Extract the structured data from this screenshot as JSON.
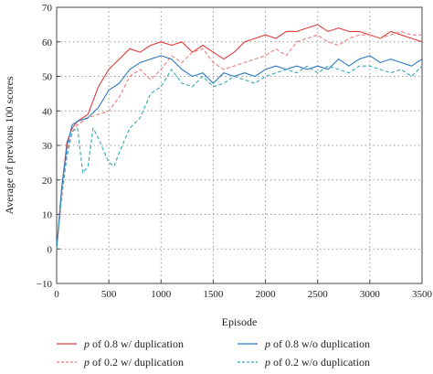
{
  "chart_data": {
    "type": "line",
    "xlabel": "Episode",
    "ylabel": "Average of previous 100 scores",
    "xlim": [
      0,
      3500
    ],
    "ylim": [
      -10,
      70
    ],
    "xticks": [
      0,
      500,
      1000,
      1500,
      2000,
      2500,
      3000,
      3500
    ],
    "yticks": [
      -10,
      0,
      10,
      20,
      30,
      40,
      50,
      60,
      70
    ],
    "grid": "dotted",
    "legend_position": "bottom",
    "series": [
      {
        "name_symbol": "p",
        "name_rest": " of 0.8 w/ duplication",
        "color": "#e03c3c",
        "dash": "solid",
        "points": [
          [
            0,
            0
          ],
          [
            50,
            18
          ],
          [
            100,
            31
          ],
          [
            150,
            35
          ],
          [
            200,
            37
          ],
          [
            300,
            39
          ],
          [
            400,
            47
          ],
          [
            500,
            52
          ],
          [
            600,
            55
          ],
          [
            700,
            58
          ],
          [
            800,
            57
          ],
          [
            900,
            59
          ],
          [
            1000,
            60
          ],
          [
            1100,
            59
          ],
          [
            1200,
            60
          ],
          [
            1300,
            57
          ],
          [
            1400,
            59
          ],
          [
            1500,
            57
          ],
          [
            1600,
            55
          ],
          [
            1700,
            57
          ],
          [
            1800,
            60
          ],
          [
            1900,
            61
          ],
          [
            2000,
            62
          ],
          [
            2100,
            61
          ],
          [
            2200,
            63
          ],
          [
            2300,
            63
          ],
          [
            2400,
            64
          ],
          [
            2500,
            65
          ],
          [
            2600,
            63
          ],
          [
            2700,
            64
          ],
          [
            2800,
            63
          ],
          [
            2900,
            63
          ],
          [
            3000,
            62
          ],
          [
            3100,
            61
          ],
          [
            3200,
            63
          ],
          [
            3300,
            62
          ],
          [
            3400,
            61
          ],
          [
            3500,
            60
          ]
        ]
      },
      {
        "name_symbol": "p",
        "name_rest": " of 0.2 w/ duplication",
        "color": "#f07c7c",
        "dash": "dashed",
        "points": [
          [
            0,
            0
          ],
          [
            50,
            15
          ],
          [
            100,
            29
          ],
          [
            150,
            34
          ],
          [
            200,
            36
          ],
          [
            300,
            38
          ],
          [
            400,
            39
          ],
          [
            500,
            40
          ],
          [
            600,
            44
          ],
          [
            700,
            50
          ],
          [
            800,
            52
          ],
          [
            900,
            49
          ],
          [
            1000,
            52
          ],
          [
            1100,
            56
          ],
          [
            1200,
            54
          ],
          [
            1300,
            57
          ],
          [
            1400,
            58
          ],
          [
            1500,
            54
          ],
          [
            1600,
            52
          ],
          [
            1700,
            53
          ],
          [
            1800,
            54
          ],
          [
            1900,
            55
          ],
          [
            2000,
            56
          ],
          [
            2100,
            58
          ],
          [
            2200,
            56
          ],
          [
            2300,
            60
          ],
          [
            2400,
            61
          ],
          [
            2500,
            62
          ],
          [
            2600,
            60
          ],
          [
            2700,
            59
          ],
          [
            2800,
            61
          ],
          [
            2900,
            62
          ],
          [
            3000,
            62
          ],
          [
            3100,
            61
          ],
          [
            3200,
            62
          ],
          [
            3300,
            63
          ],
          [
            3400,
            62
          ],
          [
            3500,
            62
          ]
        ]
      },
      {
        "name_symbol": "p",
        "name_rest": " of 0.8 w/o duplication",
        "color": "#2a78c0",
        "dash": "solid",
        "points": [
          [
            0,
            0
          ],
          [
            50,
            18
          ],
          [
            100,
            30
          ],
          [
            150,
            36
          ],
          [
            200,
            37
          ],
          [
            300,
            38
          ],
          [
            400,
            41
          ],
          [
            500,
            46
          ],
          [
            600,
            48
          ],
          [
            700,
            52
          ],
          [
            800,
            54
          ],
          [
            900,
            55
          ],
          [
            1000,
            56
          ],
          [
            1100,
            55
          ],
          [
            1200,
            52
          ],
          [
            1300,
            50
          ],
          [
            1400,
            51
          ],
          [
            1500,
            48
          ],
          [
            1600,
            51
          ],
          [
            1700,
            50
          ],
          [
            1800,
            51
          ],
          [
            1900,
            50
          ],
          [
            2000,
            52
          ],
          [
            2100,
            53
          ],
          [
            2200,
            52
          ],
          [
            2300,
            53
          ],
          [
            2400,
            52
          ],
          [
            2500,
            53
          ],
          [
            2600,
            52
          ],
          [
            2700,
            55
          ],
          [
            2800,
            53
          ],
          [
            2900,
            55
          ],
          [
            3000,
            56
          ],
          [
            3100,
            54
          ],
          [
            3200,
            55
          ],
          [
            3300,
            54
          ],
          [
            3400,
            53
          ],
          [
            3500,
            55
          ]
        ]
      },
      {
        "name_symbol": "p",
        "name_rest": " of 0.2 w/o duplication",
        "color": "#36a6b8",
        "dash": "dashed",
        "points": [
          [
            0,
            0
          ],
          [
            50,
            16
          ],
          [
            100,
            27
          ],
          [
            150,
            34
          ],
          [
            200,
            35
          ],
          [
            250,
            22
          ],
          [
            300,
            24
          ],
          [
            350,
            35
          ],
          [
            400,
            32
          ],
          [
            500,
            25
          ],
          [
            550,
            24
          ],
          [
            600,
            28
          ],
          [
            700,
            35
          ],
          [
            800,
            38
          ],
          [
            900,
            45
          ],
          [
            1000,
            47
          ],
          [
            1100,
            52
          ],
          [
            1200,
            48
          ],
          [
            1300,
            47
          ],
          [
            1400,
            50
          ],
          [
            1500,
            47
          ],
          [
            1600,
            48
          ],
          [
            1700,
            50
          ],
          [
            1800,
            49
          ],
          [
            1900,
            48
          ],
          [
            2000,
            50
          ],
          [
            2100,
            51
          ],
          [
            2200,
            52
          ],
          [
            2300,
            51
          ],
          [
            2400,
            53
          ],
          [
            2500,
            51
          ],
          [
            2600,
            53
          ],
          [
            2700,
            52
          ],
          [
            2800,
            51
          ],
          [
            2900,
            53
          ],
          [
            3000,
            53
          ],
          [
            3100,
            52
          ],
          [
            3200,
            51
          ],
          [
            3300,
            52
          ],
          [
            3400,
            50
          ],
          [
            3500,
            53
          ]
        ]
      }
    ]
  }
}
